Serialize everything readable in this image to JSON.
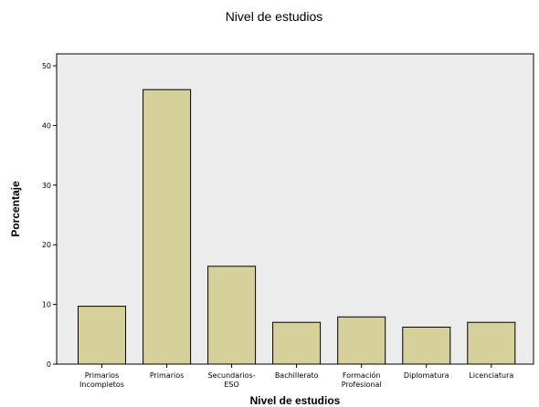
{
  "chart_data": {
    "type": "bar",
    "title": "Nivel de estudios",
    "xlabel": "Nivel de estudios",
    "ylabel": "Porcentaje",
    "categories": [
      [
        "Primarios",
        "Incompletos"
      ],
      [
        "Primarios"
      ],
      [
        "Secundarios-",
        "ESO"
      ],
      [
        "Bachillerato"
      ],
      [
        "Formación",
        "Profesional"
      ],
      [
        "Diplomatura"
      ],
      [
        "Licenciatura"
      ]
    ],
    "values": [
      9.7,
      46.0,
      16.4,
      7.0,
      7.9,
      6.2,
      7.0
    ],
    "ylim": [
      0,
      52
    ],
    "yticks": [
      0,
      10,
      20,
      30,
      40,
      50
    ],
    "grid": false,
    "colors": {
      "bar_fill": "#d6d19a",
      "bar_stroke": "#000000",
      "plot_bg": "#ececec",
      "page_bg": "#ffffff"
    }
  }
}
